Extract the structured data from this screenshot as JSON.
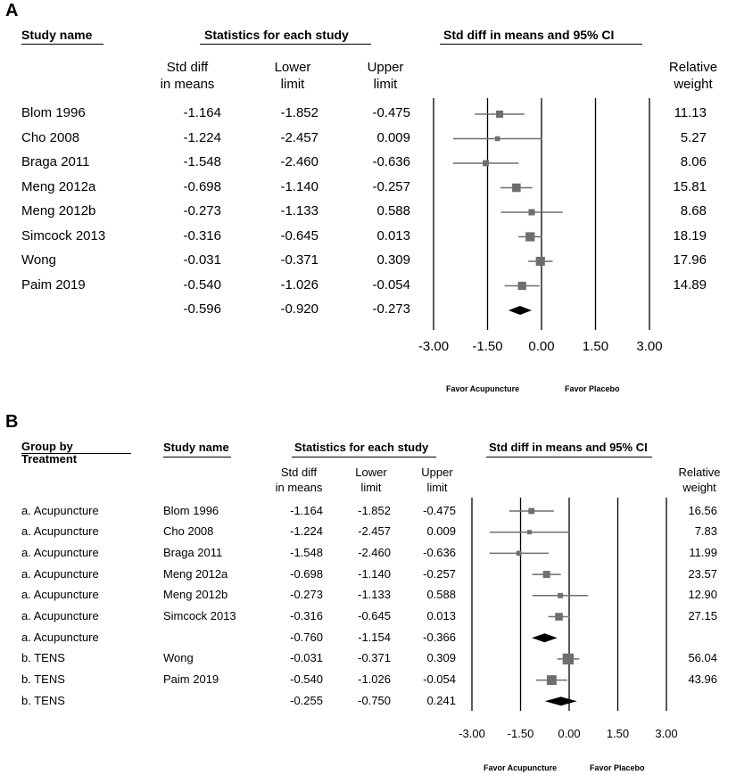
{
  "chart_data": [
    {
      "panel": "A",
      "type": "forest",
      "headers": {
        "study": "Study name",
        "stats": "Statistics for each study",
        "plot": "Std diff in means and 95% CI"
      },
      "columns": {
        "smd": [
          "Std diff",
          "in means"
        ],
        "lower": [
          "Lower",
          "limit"
        ],
        "upper": [
          "Upper",
          "limit"
        ],
        "weight": [
          "Relative",
          "weight"
        ]
      },
      "rows": [
        {
          "study": "Blom 1996",
          "smd": "-1.164",
          "lower": "-1.852",
          "upper": "-0.475",
          "weight": "11.13"
        },
        {
          "study": "Cho 2008",
          "smd": "-1.224",
          "lower": "-2.457",
          "upper": "0.009",
          "weight": "5.27"
        },
        {
          "study": "Braga 2011",
          "smd": "-1.548",
          "lower": "-2.460",
          "upper": "-0.636",
          "weight": "8.06"
        },
        {
          "study": "Meng 2012a",
          "smd": "-0.698",
          "lower": "-1.140",
          "upper": "-0.257",
          "weight": "15.81"
        },
        {
          "study": "Meng 2012b",
          "smd": "-0.273",
          "lower": "-1.133",
          "upper": "0.588",
          "weight": "8.68"
        },
        {
          "study": "Simcock 2013",
          "smd": "-0.316",
          "lower": "-0.645",
          "upper": "0.013",
          "weight": "18.19"
        },
        {
          "study": "Wong",
          "smd": "-0.031",
          "lower": "-0.371",
          "upper": "0.309",
          "weight": "17.96"
        },
        {
          "study": "Paim 2019",
          "smd": "-0.540",
          "lower": "-1.026",
          "upper": "-0.054",
          "weight": "14.89"
        },
        {
          "study": "",
          "smd": "-0.596",
          "lower": "-0.920",
          "upper": "-0.273",
          "weight": "",
          "summary": true
        }
      ],
      "axis": {
        "ticks": [
          "-3.00",
          "-1.50",
          "0.00",
          "1.50",
          "3.00"
        ],
        "xlim": [
          -3,
          3
        ]
      },
      "favor_left": "Favor Acupuncture",
      "favor_right": "Favor Placebo"
    },
    {
      "panel": "B",
      "type": "forest",
      "headers": {
        "group": [
          "Group by",
          "Treatment"
        ],
        "study": "Study name",
        "stats": "Statistics for each study",
        "plot": "Std diff in means and 95% CI"
      },
      "columns": {
        "smd": [
          "Std diff",
          "in means"
        ],
        "lower": [
          "Lower",
          "limit"
        ],
        "upper": [
          "Upper",
          "limit"
        ],
        "weight": [
          "Relative",
          "weight"
        ]
      },
      "rows": [
        {
          "group": "a. Acupuncture",
          "study": "Blom 1996",
          "smd": "-1.164",
          "lower": "-1.852",
          "upper": "-0.475",
          "weight": "16.56"
        },
        {
          "group": "a. Acupuncture",
          "study": "Cho 2008",
          "smd": "-1.224",
          "lower": "-2.457",
          "upper": "0.009",
          "weight": "7.83"
        },
        {
          "group": "a. Acupuncture",
          "study": "Braga 2011",
          "smd": "-1.548",
          "lower": "-2.460",
          "upper": "-0.636",
          "weight": "11.99"
        },
        {
          "group": "a. Acupuncture",
          "study": "Meng 2012a",
          "smd": "-0.698",
          "lower": "-1.140",
          "upper": "-0.257",
          "weight": "23.57"
        },
        {
          "group": "a. Acupuncture",
          "study": "Meng 2012b",
          "smd": "-0.273",
          "lower": "-1.133",
          "upper": "0.588",
          "weight": "12.90"
        },
        {
          "group": "a. Acupuncture",
          "study": "Simcock 2013",
          "smd": "-0.316",
          "lower": "-0.645",
          "upper": "0.013",
          "weight": "27.15"
        },
        {
          "group": "a. Acupuncture",
          "study": "",
          "smd": "-0.760",
          "lower": "-1.154",
          "upper": "-0.366",
          "weight": "",
          "summary": true
        },
        {
          "group": "b. TENS",
          "study": "Wong",
          "smd": "-0.031",
          "lower": "-0.371",
          "upper": "0.309",
          "weight": "56.04"
        },
        {
          "group": "b. TENS",
          "study": "Paim 2019",
          "smd": "-0.540",
          "lower": "-1.026",
          "upper": "-0.054",
          "weight": "43.96"
        },
        {
          "group": "b. TENS",
          "study": "",
          "smd": "-0.255",
          "lower": "-0.750",
          "upper": "0.241",
          "weight": "",
          "summary": true
        }
      ],
      "axis": {
        "ticks": [
          "-3.00",
          "-1.50",
          "0.00",
          "1.50",
          "3.00"
        ],
        "xlim": [
          -3,
          3
        ]
      },
      "favor_left": "Favor Acupuncture",
      "favor_right": "Favor Placebo"
    }
  ],
  "colors": {
    "marker": "#6e6e6e",
    "line": "#000000",
    "ci": "#6e6e6e"
  }
}
